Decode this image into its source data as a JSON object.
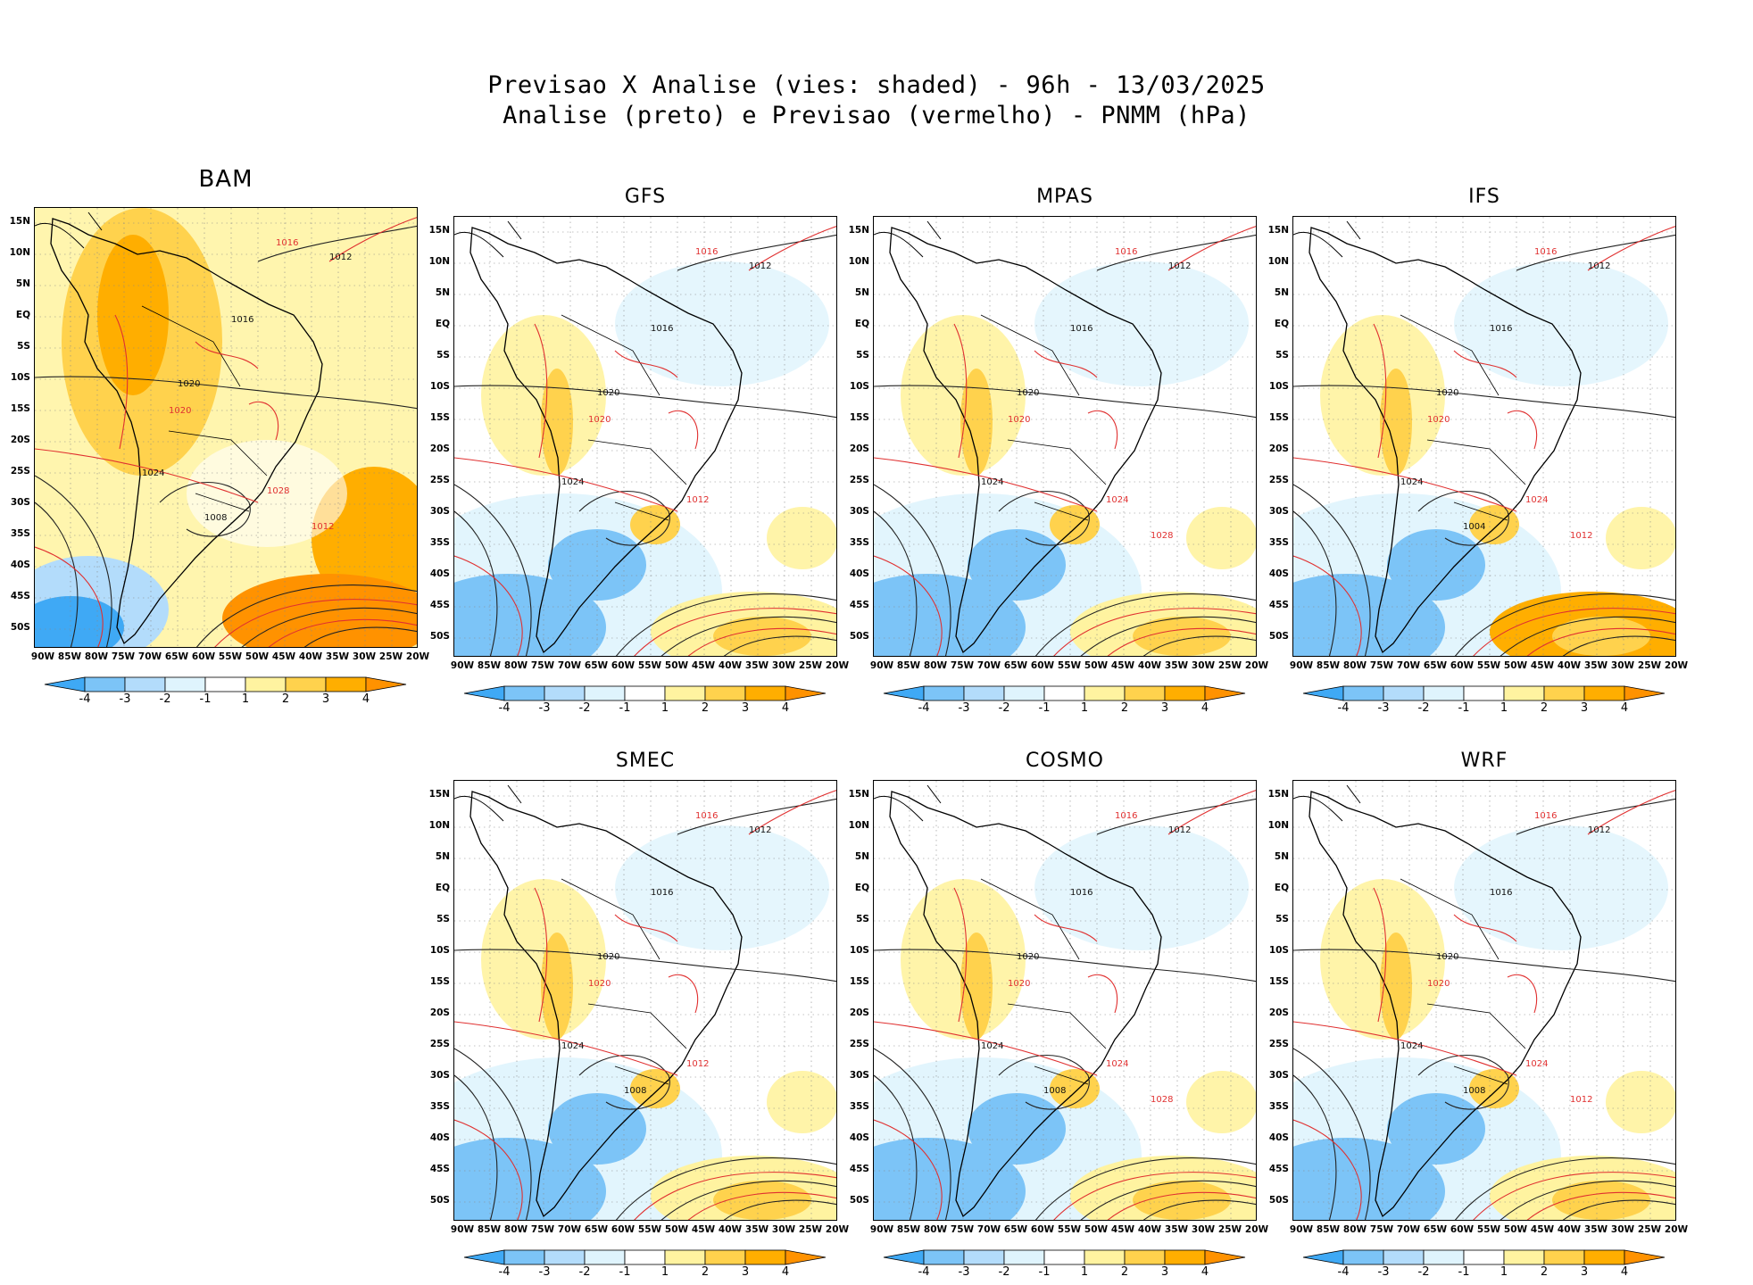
{
  "header": {
    "line1": "Previsao X Analise (vies: shaded) - 96h - 13/03/2025",
    "line2": "Analise (preto) e Previsao (vermelho) - PNMM (hPa)"
  },
  "axes": {
    "lat_labels": [
      "15N",
      "10N",
      "5N",
      "EQ",
      "5S",
      "10S",
      "15S",
      "20S",
      "25S",
      "30S",
      "35S",
      "40S",
      "45S",
      "50S"
    ],
    "lon_labels": [
      "90W",
      "85W",
      "80W",
      "75W",
      "70W",
      "65W",
      "60W",
      "55W",
      "50W",
      "45W",
      "40W",
      "35W",
      "30W",
      "25W",
      "20W"
    ]
  },
  "colorbar": {
    "labels": [
      "-4",
      "-3",
      "-2",
      "-1",
      "1",
      "2",
      "3",
      "4"
    ],
    "colors": [
      "#3fa9f5",
      "#7cc4f7",
      "#b3dcfb",
      "#dff4fd",
      "#ffffff",
      "#fff3a0",
      "#ffd24d",
      "#ffae00",
      "#ff9200"
    ]
  },
  "panels": [
    {
      "id": "bam",
      "name": "BAM",
      "bias": "warm",
      "isobars_black": [
        "1012",
        "1016",
        "1020",
        "1024",
        "1008"
      ],
      "isobars_red": [
        "1016",
        "1020",
        "1028",
        "1012"
      ]
    },
    {
      "id": "gfs",
      "name": "GFS",
      "bias": "cool",
      "isobars_black": [
        "1012",
        "1016",
        "1020",
        "1024"
      ],
      "isobars_red": [
        "1016",
        "1020",
        "1012"
      ]
    },
    {
      "id": "mpas",
      "name": "MPAS",
      "bias": "cool",
      "isobars_black": [
        "1012",
        "1016",
        "1020",
        "1024"
      ],
      "isobars_red": [
        "1016",
        "1020",
        "1024",
        "1028"
      ]
    },
    {
      "id": "ifs",
      "name": "IFS",
      "bias": "mixed",
      "isobars_black": [
        "1012",
        "1016",
        "1020",
        "1024",
        "1004"
      ],
      "isobars_red": [
        "1016",
        "1020",
        "1024",
        "1012"
      ]
    },
    {
      "id": "smec",
      "name": "SMEC",
      "bias": "cool",
      "isobars_black": [
        "1012",
        "1016",
        "1020",
        "1024",
        "1008"
      ],
      "isobars_red": [
        "1016",
        "1020",
        "1012"
      ]
    },
    {
      "id": "cosmo",
      "name": "COSMO",
      "bias": "cool",
      "isobars_black": [
        "1012",
        "1016",
        "1020",
        "1024",
        "1008"
      ],
      "isobars_red": [
        "1016",
        "1020",
        "1024",
        "1028"
      ]
    },
    {
      "id": "wrf",
      "name": "WRF",
      "bias": "cool",
      "isobars_black": [
        "1012",
        "1016",
        "1020",
        "1024",
        "1008"
      ],
      "isobars_red": [
        "1016",
        "1020",
        "1024",
        "1012"
      ]
    }
  ]
}
